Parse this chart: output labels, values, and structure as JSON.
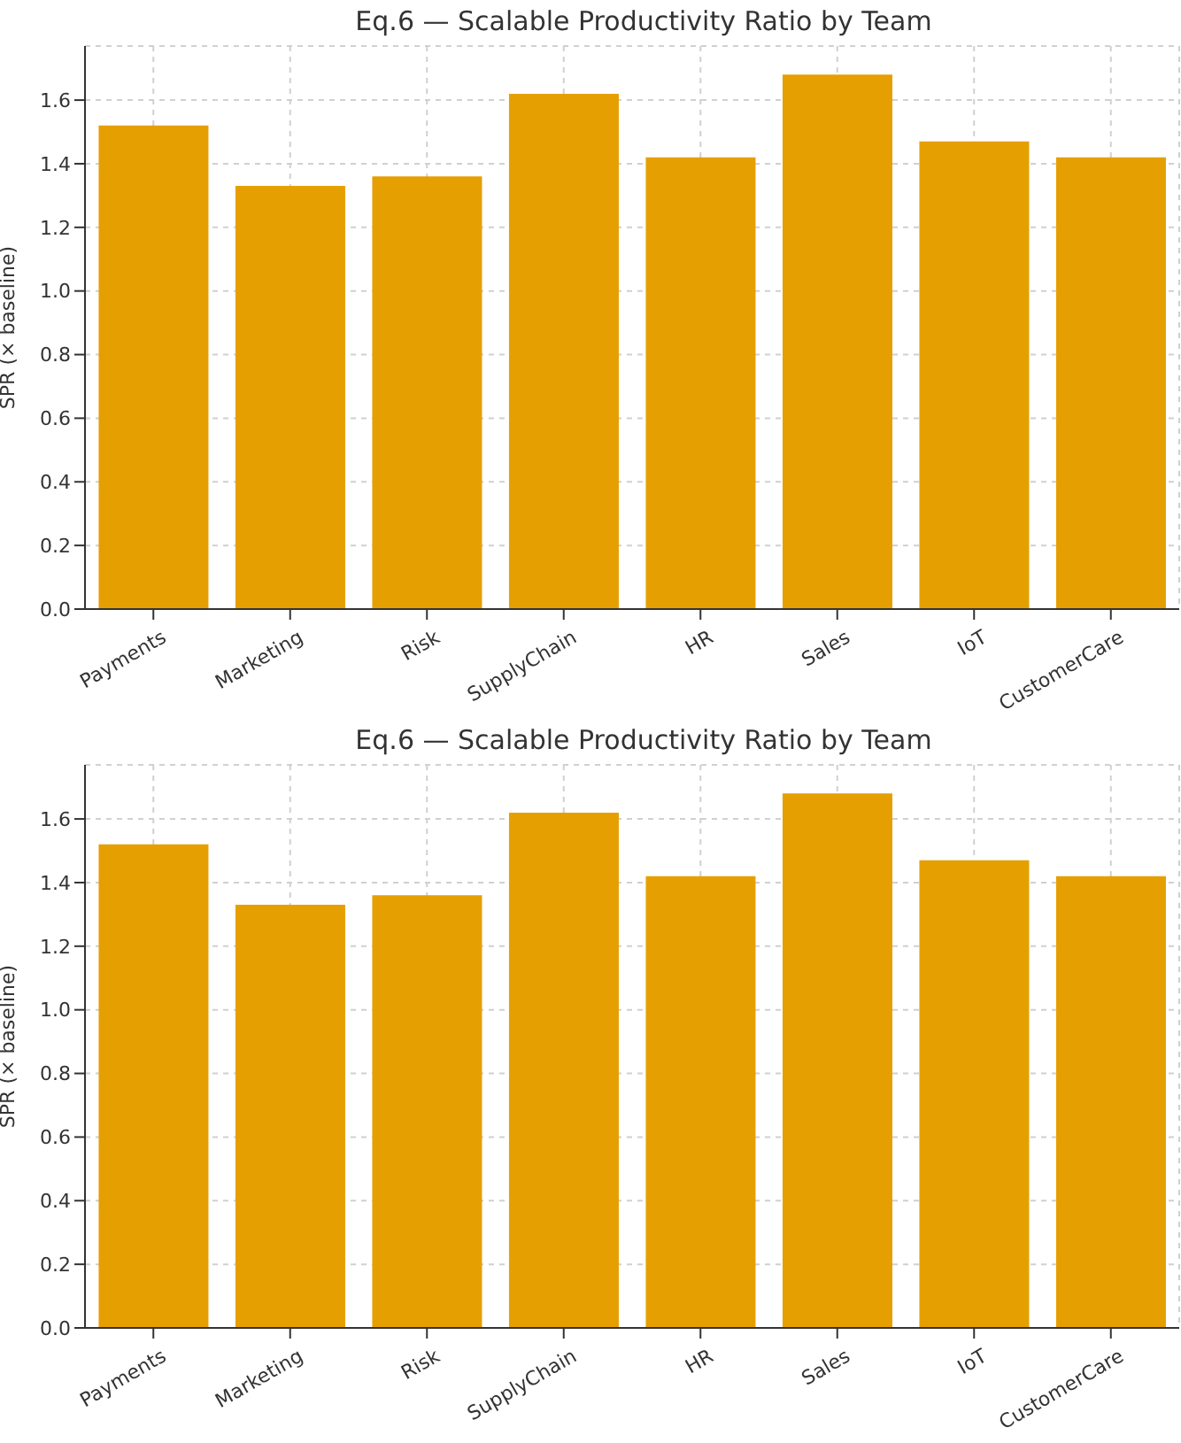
{
  "chart_data": [
    {
      "type": "bar",
      "title": "Eq.6 — Scalable Productivity Ratio by Team",
      "ylabel": "SPR (× baseline)",
      "categories": [
        "Payments",
        "Marketing",
        "Risk",
        "SupplyChain",
        "HR",
        "Sales",
        "IoT",
        "CustomerCare"
      ],
      "values": [
        1.52,
        1.33,
        1.36,
        1.62,
        1.42,
        1.68,
        1.47,
        1.42
      ],
      "color": "#e69f00",
      "ylim": [
        0,
        1.77
      ],
      "yticks": [
        {
          "value": 0,
          "label": "0.0"
        },
        {
          "value": 0.2,
          "label": "0.2"
        },
        {
          "value": 0.4,
          "label": "0.4"
        },
        {
          "value": 0.6,
          "label": "0.6"
        },
        {
          "value": 0.8,
          "label": "0.8"
        },
        {
          "value": 1,
          "label": "1.0"
        },
        {
          "value": 1.2,
          "label": "1.2"
        },
        {
          "value": 1.4,
          "label": "1.4"
        },
        {
          "value": 1.6,
          "label": "1.6"
        }
      ],
      "grid": true
    },
    {
      "type": "bar",
      "title": "Eq.6 — Scalable Productivity Ratio by Team",
      "ylabel": "SPR (× baseline)",
      "categories": [
        "Payments",
        "Marketing",
        "Risk",
        "SupplyChain",
        "HR",
        "Sales",
        "IoT",
        "CustomerCare"
      ],
      "values": [
        1.52,
        1.33,
        1.36,
        1.62,
        1.42,
        1.68,
        1.47,
        1.42
      ],
      "color": "#e69f00",
      "ylim": [
        0,
        1.77
      ],
      "yticks": [
        {
          "value": 0,
          "label": "0.0"
        },
        {
          "value": 0.2,
          "label": "0.2"
        },
        {
          "value": 0.4,
          "label": "0.4"
        },
        {
          "value": 0.6,
          "label": "0.6"
        },
        {
          "value": 0.8,
          "label": "0.8"
        },
        {
          "value": 1,
          "label": "1.0"
        },
        {
          "value": 1.2,
          "label": "1.2"
        },
        {
          "value": 1.4,
          "label": "1.4"
        },
        {
          "value": 1.6,
          "label": "1.6"
        }
      ],
      "grid": true
    }
  ]
}
